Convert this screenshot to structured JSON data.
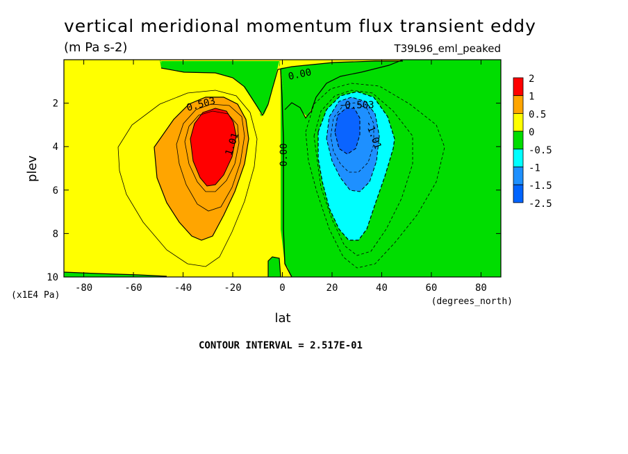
{
  "chart_data": {
    "type": "heatmap",
    "title": "vertical meridional momentum flux transient eddy",
    "units": "(m Pa s-2)",
    "experiment": "T39L96_eml_peaked",
    "xlabel": "lat",
    "xunits": "(degrees_north)",
    "ylabel": "plev",
    "yunits": "(x1E4 Pa)",
    "xlim": [
      -88,
      88
    ],
    "ylim": [
      10,
      0
    ],
    "xticks": [
      "-80",
      "-60",
      "-40",
      "-20",
      "0",
      "20",
      "40",
      "60",
      "80"
    ],
    "xtick_values": [
      -80,
      -60,
      -40,
      -20,
      0,
      20,
      40,
      60,
      80
    ],
    "yticks": [
      "2",
      "4",
      "6",
      "8",
      "10"
    ],
    "ytick_values": [
      2,
      4,
      6,
      8,
      10
    ],
    "contour_interval_text": "CONTOUR INTERVAL = 2.517E-01",
    "contour_labels": [
      "0.503",
      "1.01",
      "0.00",
      "0.00",
      "-0.503",
      "-1.01"
    ],
    "colorbar": {
      "labels": [
        "2",
        "1",
        "0.5",
        "0",
        "-0.5",
        "-1",
        "-1.5",
        "-2.5"
      ],
      "colors": [
        "#ff0000",
        "#ffa500",
        "#ffff00",
        "#00dd00",
        "#00ffff",
        "#1e90ff",
        "#0064ff"
      ]
    },
    "features": [
      {
        "name": "positive maximum",
        "lat": -27,
        "plev": 3.5,
        "value": 2.0
      },
      {
        "name": "negative minimum",
        "lat": 26,
        "plev": 3.3,
        "value": -2.0
      }
    ]
  }
}
